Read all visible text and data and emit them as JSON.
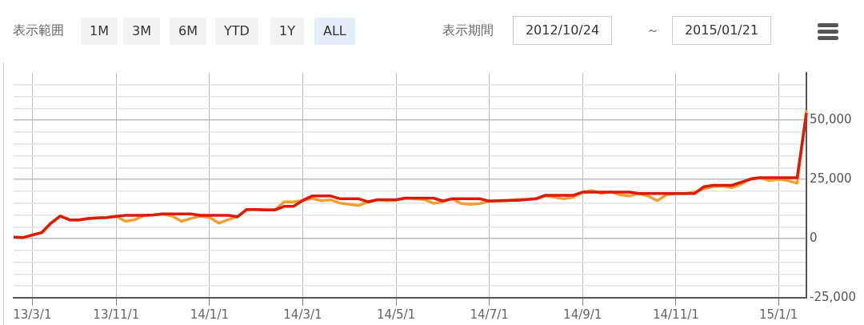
{
  "chart_data": {
    "type": "line",
    "categories": [
      null,
      null,
      "13/3/1",
      null,
      null,
      null,
      null,
      null,
      null,
      null,
      null,
      "13/11/1",
      null,
      null,
      null,
      null,
      null,
      null,
      null,
      null,
      null,
      "14/1/1",
      null,
      null,
      null,
      null,
      null,
      null,
      null,
      null,
      null,
      "14/3/1",
      null,
      null,
      null,
      null,
      null,
      null,
      null,
      null,
      null,
      "14/5/1",
      null,
      null,
      null,
      null,
      null,
      null,
      null,
      null,
      null,
      "14/7/1",
      null,
      null,
      null,
      null,
      null,
      null,
      null,
      null,
      null,
      "14/9/1",
      null,
      null,
      null,
      null,
      null,
      null,
      null,
      null,
      null,
      "14/11/1",
      null,
      null,
      null,
      null,
      null,
      null,
      null,
      null,
      null,
      null,
      "15/1/1",
      null,
      null,
      null
    ],
    "series": [
      {
        "color": "#dd1a0a",
        "values": [
          600,
          400,
          1500,
          2500,
          6500,
          9500,
          7900,
          7900,
          8500,
          8700,
          8900,
          9400,
          9800,
          9800,
          9800,
          10000,
          10400,
          10400,
          10400,
          10400,
          9800,
          9800,
          9800,
          9800,
          9200,
          12300,
          12300,
          12100,
          12100,
          13600,
          13600,
          16100,
          18000,
          18000,
          18000,
          16800,
          16800,
          16800,
          15500,
          16400,
          16400,
          16400,
          17100,
          17100,
          17100,
          17100,
          15900,
          16800,
          16800,
          16800,
          16800,
          15800,
          16000,
          16200,
          16200,
          16500,
          16800,
          18300,
          18300,
          18300,
          18300,
          19600,
          19600,
          19600,
          19600,
          19600,
          19600,
          19000,
          19000,
          19000,
          19000,
          19000,
          19000,
          19000,
          21900,
          22500,
          22500,
          22500,
          23800,
          25100,
          25700,
          25700,
          25700,
          25700,
          25700,
          53000
        ]
      },
      {
        "color": "#f0a030",
        "values": [
          600,
          400,
          1500,
          2500,
          6500,
          9500,
          7900,
          7900,
          8500,
          8700,
          8900,
          9400,
          7300,
          8000,
          9800,
          10000,
          10400,
          9500,
          7300,
          8500,
          9500,
          9000,
          6500,
          8000,
          9200,
          12300,
          12300,
          12100,
          12100,
          15500,
          15500,
          16100,
          17000,
          16000,
          16400,
          15000,
          14500,
          14000,
          15500,
          16400,
          16000,
          16200,
          17100,
          16800,
          16500,
          14900,
          15500,
          16800,
          14800,
          14500,
          14800,
          15800,
          15900,
          16000,
          16600,
          16500,
          16800,
          18000,
          17500,
          16800,
          17500,
          19600,
          20300,
          19000,
          19800,
          18500,
          18000,
          19000,
          18000,
          16000,
          18500,
          19000,
          19000,
          19600,
          21000,
          22000,
          22200,
          21500,
          23000,
          25300,
          25700,
          24500,
          25000,
          24500,
          23400,
          54300
        ]
      }
    ],
    "ylim": [
      -25000,
      70000
    ],
    "yticks": [
      {
        "value": -25000,
        "label": "-25,000"
      },
      {
        "value": -20000,
        "label": null
      },
      {
        "value": -15000,
        "label": null
      },
      {
        "value": -10000,
        "label": null
      },
      {
        "value": -5000,
        "label": null
      },
      0,
      {
        "value": 5000,
        "label": null
      },
      {
        "value": 10000,
        "label": null
      },
      {
        "value": 15000,
        "label": null
      },
      {
        "value": 20000,
        "label": null
      },
      {
        "value": 25000,
        "label": "25,000"
      },
      {
        "value": 30000,
        "label": null
      },
      {
        "value": 35000,
        "label": null
      },
      {
        "value": 40000,
        "label": null
      },
      {
        "value": 45000,
        "label": null
      },
      {
        "value": 50000,
        "label": "50,000"
      },
      {
        "value": 55000,
        "label": null
      },
      {
        "value": 60000,
        "label": null
      },
      {
        "value": 65000,
        "label": null
      }
    ],
    "grid": true,
    "legend": false,
    "marker": "none",
    "line_style": "solid",
    "annotations": [
      "表示範囲",
      "1M",
      "3M",
      "6M",
      "YTD",
      "1Y",
      "ALL",
      "表示期間",
      "2012/10/24",
      "～",
      "2015/01/21"
    ]
  }
}
